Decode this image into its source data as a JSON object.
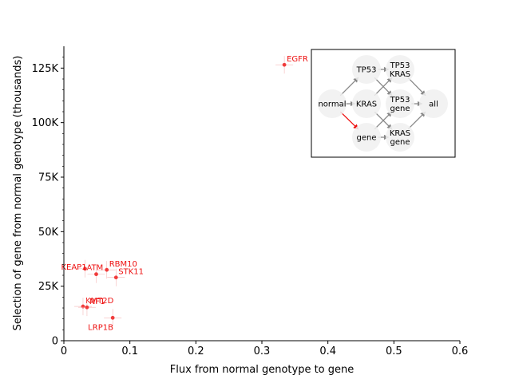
{
  "chart_data": {
    "type": "scatter",
    "title": "",
    "xlabel": "Flux from normal genotype to gene",
    "ylabel": "Selection of gene from normal genotype (thousands)",
    "xlim": [
      0,
      0.6
    ],
    "ylim": [
      0,
      135000
    ],
    "xticks": [
      {
        "value": 0,
        "label": "0"
      },
      {
        "value": 0.1,
        "label": "0.1"
      },
      {
        "value": 0.2,
        "label": "0.2"
      },
      {
        "value": 0.3,
        "label": "0.3"
      },
      {
        "value": 0.4,
        "label": "0.4"
      },
      {
        "value": 0.5,
        "label": "0.5"
      },
      {
        "value": 0.6,
        "label": "0.6"
      }
    ],
    "yticks": [
      {
        "value": 0,
        "label": "0"
      },
      {
        "value": 25000,
        "label": "25K"
      },
      {
        "value": 50000,
        "label": "50K"
      },
      {
        "value": 75000,
        "label": "75K"
      },
      {
        "value": 100000,
        "label": "100K"
      },
      {
        "value": 125000,
        "label": "125K"
      }
    ],
    "grid": false,
    "point_color": "#ee1111",
    "points": [
      {
        "label": "EGFR",
        "x": 0.334,
        "y": 126500,
        "label_pos": "upper-right"
      },
      {
        "label": "RBM10",
        "x": 0.065,
        "y": 32500,
        "label_pos": "upper-right"
      },
      {
        "label": "ATM",
        "x": 0.049,
        "y": 30500,
        "label_pos": "upper-left"
      },
      {
        "label": "KEAP1",
        "x": 0.032,
        "y": 33000,
        "label_pos": "left"
      },
      {
        "label": "STK11",
        "x": 0.079,
        "y": 29000,
        "label_pos": "upper-right"
      },
      {
        "label": "KMT2D",
        "x": 0.029,
        "y": 15700,
        "label_pos": "upper-right"
      },
      {
        "label": "NF1",
        "x": 0.035,
        "y": 15300,
        "label_pos": "upper-right"
      },
      {
        "label": "LRP1B",
        "x": 0.074,
        "y": 10500,
        "label_pos": "lower-left"
      }
    ],
    "inset": {
      "type": "diagram",
      "nodes": [
        {
          "id": "normal",
          "label": "normal"
        },
        {
          "id": "TP53",
          "label": "TP53"
        },
        {
          "id": "KRAS",
          "label": "KRAS"
        },
        {
          "id": "gene",
          "label": "gene"
        },
        {
          "id": "TP53_KRAS",
          "label": "TP53\nKRAS"
        },
        {
          "id": "TP53_gene",
          "label": "TP53\ngene"
        },
        {
          "id": "KRAS_gene",
          "label": "KRAS\ngene"
        },
        {
          "id": "all",
          "label": "all"
        }
      ],
      "edges": [
        {
          "from": "normal",
          "to": "TP53"
        },
        {
          "from": "normal",
          "to": "KRAS"
        },
        {
          "from": "normal",
          "to": "gene",
          "highlight": true
        },
        {
          "from": "TP53",
          "to": "TP53_KRAS"
        },
        {
          "from": "TP53",
          "to": "TP53_gene"
        },
        {
          "from": "KRAS",
          "to": "TP53_KRAS"
        },
        {
          "from": "KRAS",
          "to": "KRAS_gene"
        },
        {
          "from": "gene",
          "to": "TP53_gene"
        },
        {
          "from": "gene",
          "to": "KRAS_gene"
        },
        {
          "from": "TP53_KRAS",
          "to": "all"
        },
        {
          "from": "TP53_gene",
          "to": "all"
        },
        {
          "from": "KRAS_gene",
          "to": "all"
        }
      ],
      "edge_color": "#888888",
      "highlight_color": "#ee1111",
      "node_fill": "#f0f0f0"
    }
  }
}
